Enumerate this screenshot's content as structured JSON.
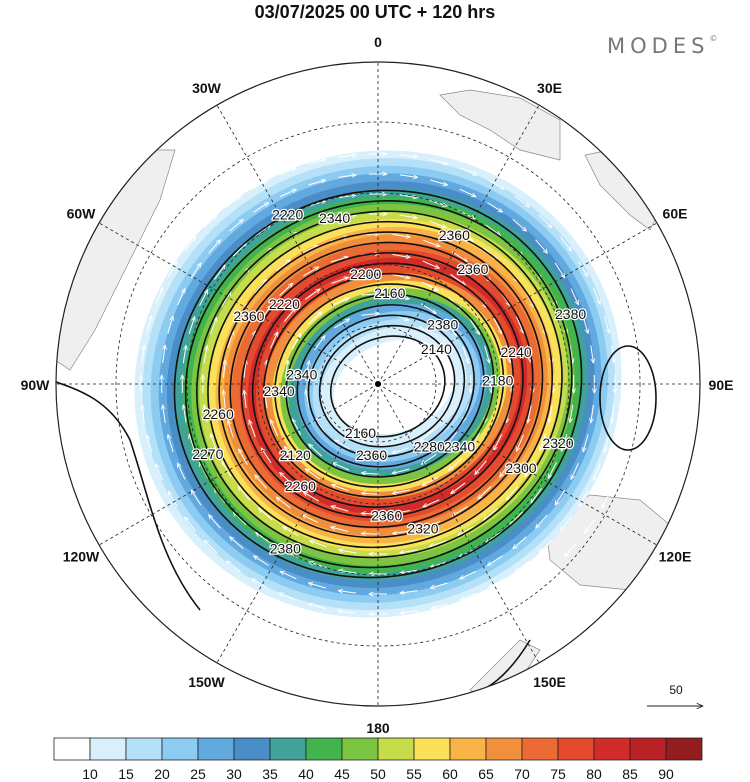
{
  "header": {
    "title": "03/07/2025  00 UTC  + 120 hrs",
    "brand": "MODES",
    "brand_mark": "©"
  },
  "map": {
    "projection": "polar-stereographic-south",
    "longitude_labels": [
      {
        "text": "0",
        "lon": 0
      },
      {
        "text": "30E",
        "lon": 30
      },
      {
        "text": "60E",
        "lon": 60
      },
      {
        "text": "90E",
        "lon": 90
      },
      {
        "text": "120E",
        "lon": 120
      },
      {
        "text": "150E",
        "lon": 150
      },
      {
        "text": "180",
        "lon": 180
      },
      {
        "text": "150W",
        "lon": -150
      },
      {
        "text": "120W",
        "lon": -120
      },
      {
        "text": "90W",
        "lon": -90
      },
      {
        "text": "60W",
        "lon": -60
      },
      {
        "text": "30W",
        "lon": -30
      }
    ],
    "latitude_circles": [
      -30,
      -45,
      -60,
      -75
    ],
    "contour_labels": [
      "2380",
      "2380",
      "2340",
      "2300",
      "2260",
      "2360",
      "2360",
      "2220",
      "2180",
      "2120",
      "2160",
      "2280",
      "2340",
      "2140",
      "2160",
      "2220",
      "2320",
      "2270",
      "2360",
      "2320",
      "2360",
      "2240",
      "2260",
      "2200",
      "2340",
      "2340",
      "2380",
      "2360"
    ],
    "wind_vector_reference": {
      "value": "50"
    }
  },
  "colorbar": {
    "ticks": [
      "10",
      "15",
      "20",
      "25",
      "30",
      "35",
      "40",
      "45",
      "50",
      "55",
      "60",
      "65",
      "70",
      "75",
      "80",
      "85",
      "90"
    ],
    "colors": [
      "#ffffff",
      "#d8f0fc",
      "#b4e0f8",
      "#8ccbf2",
      "#62a9df",
      "#4a8ec7",
      "#3fa39a",
      "#41b44e",
      "#7cc542",
      "#c7dc4a",
      "#fbe15a",
      "#f9b347",
      "#f28f3c",
      "#ec6a33",
      "#e44a2d",
      "#d22c2a",
      "#b82126",
      "#921c1e"
    ]
  }
}
